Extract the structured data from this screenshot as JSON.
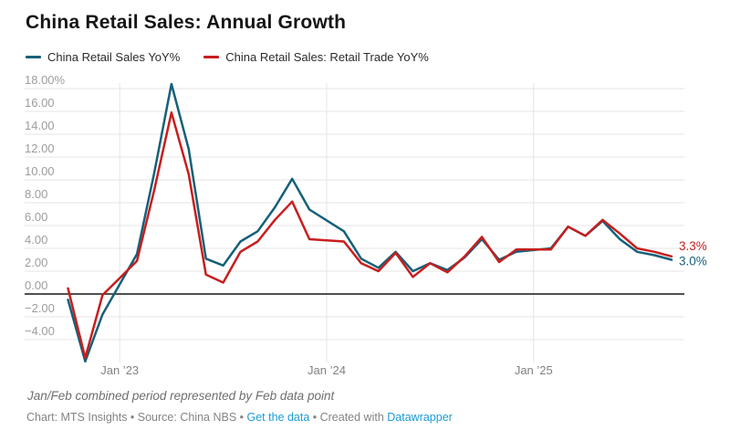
{
  "title": "China Retail Sales: Annual Growth",
  "footnote": "Jan/Feb combined period represented by Feb data point",
  "credits": {
    "parts": [
      {
        "text": "Chart: MTS Insights • Source: China NBS • "
      },
      {
        "text": "Get the data"
      },
      {
        "text": " • Created with "
      },
      {
        "text": "Datawrapper"
      }
    ]
  },
  "colors": {
    "series1": "#15607a",
    "series2": "#c71e1d",
    "link_blue": "#1e9bd6",
    "gridline": "#e4e4e4",
    "zero_line": "#161616"
  },
  "chart_data": {
    "type": "line",
    "title": "China Retail Sales: Annual Growth",
    "xlabel": "",
    "ylabel": "",
    "grid": true,
    "legend_position": "top-left",
    "ylim": [
      -6.5,
      18.8
    ],
    "x": [
      "Oct 2022",
      "Nov 2022",
      "Dec 2022",
      "Feb 2023",
      "Mar 2023",
      "Apr 2023",
      "May 2023",
      "Jun 2023",
      "Jul 2023",
      "Aug 2023",
      "Sep 2023",
      "Oct 2023",
      "Nov 2023",
      "Dec 2023",
      "Feb 2024",
      "Mar 2024",
      "Apr 2024",
      "May 2024",
      "Jun 2024",
      "Jul 2024",
      "Aug 2024",
      "Sep 2024",
      "Oct 2024",
      "Nov 2024",
      "Dec 2024",
      "Feb 2025",
      "Mar 2025",
      "Apr 2025",
      "May 2025",
      "Jun 2025",
      "Jul 2025",
      "Aug 2025",
      "Sep 2025"
    ],
    "series": [
      {
        "name": "China Retail Sales YoY%",
        "color": "#15607a",
        "end_label": "3.0%",
        "values": [
          -0.5,
          -5.9,
          -1.8,
          3.5,
          10.6,
          18.4,
          12.7,
          3.1,
          2.5,
          4.6,
          5.5,
          7.6,
          10.1,
          7.4,
          5.5,
          3.1,
          2.3,
          3.7,
          2.0,
          2.7,
          2.1,
          3.2,
          4.8,
          3.0,
          3.7,
          4.0,
          5.9,
          5.1,
          6.4,
          4.8,
          3.7,
          3.4,
          3.0
        ]
      },
      {
        "name": "China Retail Sales: Retail Trade YoY%",
        "color": "#c71e1d",
        "end_label": "3.3%",
        "values": [
          0.5,
          -5.6,
          -0.1,
          2.9,
          9.1,
          15.9,
          10.5,
          1.7,
          1.0,
          3.7,
          4.6,
          6.5,
          8.1,
          4.8,
          4.6,
          2.7,
          2.0,
          3.6,
          1.5,
          2.7,
          1.9,
          3.3,
          5.0,
          2.8,
          3.9,
          3.9,
          5.9,
          5.1,
          6.5,
          5.3,
          4.0,
          3.7,
          3.3
        ]
      }
    ],
    "yticks": [
      {
        "value": 18,
        "label": "18.00%"
      },
      {
        "value": 16,
        "label": "16.00"
      },
      {
        "value": 14,
        "label": "14.00"
      },
      {
        "value": 12,
        "label": "12.00"
      },
      {
        "value": 10,
        "label": "10.00"
      },
      {
        "value": 8,
        "label": "8.00"
      },
      {
        "value": 6,
        "label": "6.00"
      },
      {
        "value": 4,
        "label": "4.00"
      },
      {
        "value": 2,
        "label": "2.00"
      },
      {
        "value": 0,
        "label": "0.00"
      },
      {
        "value": -2,
        "label": "−2.00"
      },
      {
        "value": -4,
        "label": "−4.00"
      }
    ],
    "xticks": [
      {
        "month": "Jan 2023",
        "label": "Jan ’23"
      },
      {
        "month": "Jan 2024",
        "label": "Jan ’24"
      },
      {
        "month": "Jan 2025",
        "label": "Jan ’25"
      }
    ]
  }
}
